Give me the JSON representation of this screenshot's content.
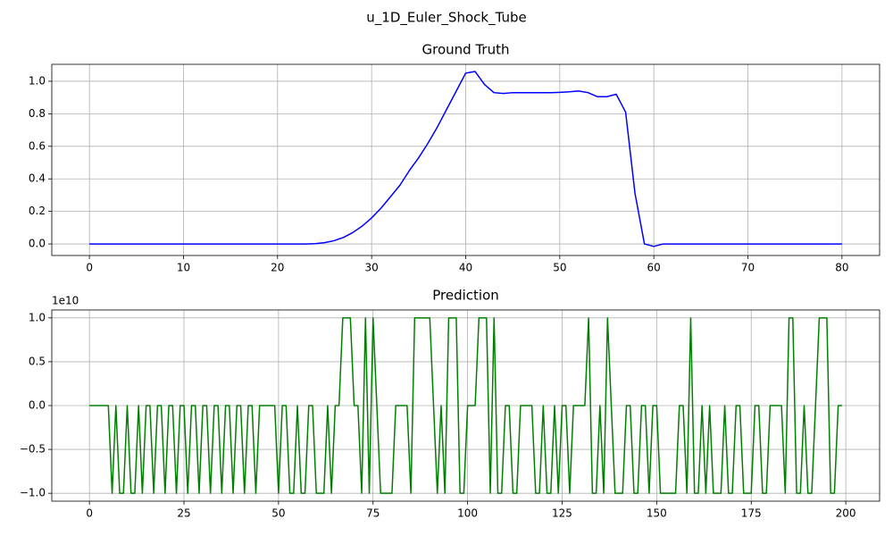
{
  "title": "u_1D_Euler_Shock_Tube",
  "chart_data": [
    {
      "type": "line",
      "title": "Ground Truth",
      "color": "#0000ff",
      "grid": true,
      "x": [
        0,
        1,
        2,
        3,
        4,
        5,
        6,
        7,
        8,
        9,
        10,
        11,
        12,
        13,
        14,
        15,
        16,
        17,
        18,
        19,
        20,
        21,
        22,
        23,
        24,
        25,
        26,
        27,
        28,
        29,
        30,
        31,
        32,
        33,
        34,
        35,
        36,
        37,
        38,
        39,
        40,
        41,
        42,
        43,
        44,
        45,
        46,
        47,
        48,
        49,
        50,
        51,
        52,
        53,
        54,
        55,
        56,
        57,
        58,
        59,
        60,
        61,
        62,
        63,
        64,
        65,
        66,
        67,
        68,
        69,
        70,
        71,
        72,
        73,
        74,
        75,
        76,
        77,
        78,
        79,
        80
      ],
      "values": [
        0,
        0,
        0,
        0,
        0,
        0,
        0,
        0,
        0,
        0,
        0,
        0,
        0,
        0,
        0,
        0,
        0,
        0,
        0,
        0,
        0,
        0,
        0,
        0,
        0.002,
        0.008,
        0.02,
        0.04,
        0.07,
        0.11,
        0.16,
        0.22,
        0.29,
        0.36,
        0.45,
        0.53,
        0.62,
        0.72,
        0.83,
        0.94,
        1.05,
        1.06,
        0.98,
        0.93,
        0.925,
        0.93,
        0.93,
        0.93,
        0.93,
        0.93,
        0.932,
        0.935,
        0.94,
        0.93,
        0.905,
        0.905,
        0.92,
        0.81,
        0.31,
        0.0,
        -0.015,
        0.0,
        0,
        0,
        0,
        0,
        0,
        0,
        0,
        0,
        0,
        0,
        0,
        0,
        0,
        0,
        0,
        0,
        0,
        0,
        0
      ],
      "xlim": [
        -4,
        84
      ],
      "xticks": [
        0,
        10,
        20,
        30,
        40,
        50,
        60,
        70,
        80
      ],
      "ylim": [
        -0.071,
        1.104
      ],
      "yticks": [
        {
          "value": 0,
          "label": "0.0"
        },
        {
          "value": 0.2,
          "label": "0.2"
        },
        {
          "value": 0.4,
          "label": "0.4"
        },
        {
          "value": 0.6,
          "label": "0.6"
        },
        {
          "value": 0.8,
          "label": "0.8"
        },
        {
          "value": 1.0,
          "label": "1.0"
        }
      ]
    },
    {
      "type": "line",
      "title": "Prediction",
      "color": "#008000",
      "grid": true,
      "offset_label": "1e10",
      "x": [
        0,
        1,
        2,
        3,
        4,
        5,
        6,
        7,
        8,
        9,
        10,
        11,
        12,
        13,
        14,
        15,
        16,
        17,
        18,
        19,
        20,
        21,
        22,
        23,
        24,
        25,
        26,
        27,
        28,
        29,
        30,
        31,
        32,
        33,
        34,
        35,
        36,
        37,
        38,
        39,
        40,
        41,
        42,
        43,
        44,
        45,
        46,
        47,
        48,
        49,
        50,
        51,
        52,
        53,
        54,
        55,
        56,
        57,
        58,
        59,
        60,
        61,
        62,
        63,
        64,
        65,
        66,
        67,
        68,
        69,
        70,
        71,
        72,
        73,
        74,
        75,
        76,
        77,
        78,
        79,
        80,
        81,
        82,
        83,
        84,
        85,
        86,
        87,
        88,
        89,
        90,
        91,
        92,
        93,
        94,
        95,
        96,
        97,
        98,
        99,
        100,
        101,
        102,
        103,
        104,
        105,
        106,
        107,
        108,
        109,
        110,
        111,
        112,
        113,
        114,
        115,
        116,
        117,
        118,
        119,
        120,
        121,
        122,
        123,
        124,
        125,
        126,
        127,
        128,
        129,
        130,
        131,
        132,
        133,
        134,
        135,
        136,
        137,
        138,
        139,
        140,
        141,
        142,
        143,
        144,
        145,
        146,
        147,
        148,
        149,
        150,
        151,
        152,
        153,
        154,
        155,
        156,
        157,
        158,
        159,
        160,
        161,
        162,
        163,
        164,
        165,
        166,
        167,
        168,
        169,
        170,
        171,
        172,
        173,
        174,
        175,
        176,
        177,
        178,
        179,
        180,
        181,
        182,
        183,
        184,
        185,
        186,
        187,
        188,
        189,
        190,
        191,
        192,
        193,
        194,
        195,
        196,
        197,
        198,
        199
      ],
      "values": [
        0,
        0,
        0,
        0,
        0,
        0,
        -10000000000.0,
        0,
        -10000000000.0,
        -10000000000.0,
        0,
        -10000000000.0,
        -10000000000.0,
        0,
        -10000000000.0,
        0,
        0,
        -10000000000.0,
        0,
        0,
        -10000000000.0,
        0,
        0,
        -10000000000.0,
        0,
        0,
        -10000000000.0,
        0,
        0,
        -10000000000.0,
        0,
        0,
        -10000000000.0,
        0,
        0,
        -10000000000.0,
        0,
        0,
        -10000000000.0,
        0,
        0,
        -10000000000.0,
        0,
        0,
        -10000000000.0,
        0,
        0,
        0,
        0,
        0,
        -10000000000.0,
        0,
        0,
        -10000000000.0,
        -10000000000.0,
        0,
        -10000000000.0,
        -10000000000.0,
        0,
        0,
        -10000000000.0,
        -10000000000.0,
        -10000000000.0,
        0,
        -10000000000.0,
        0,
        0,
        10000000000.0,
        10000000000.0,
        10000000000.0,
        0,
        0,
        -10000000000.0,
        10000000000.0,
        -10000000000.0,
        10000000000.0,
        0,
        -10000000000.0,
        -10000000000.0,
        -10000000000.0,
        -10000000000.0,
        0,
        0,
        0,
        0,
        -10000000000.0,
        10000000000.0,
        10000000000.0,
        10000000000.0,
        10000000000.0,
        10000000000.0,
        0,
        -10000000000.0,
        0,
        -10000000000.0,
        10000000000.0,
        10000000000.0,
        10000000000.0,
        -10000000000.0,
        -10000000000.0,
        0,
        0,
        0,
        10000000000.0,
        10000000000.0,
        10000000000.0,
        -10000000000.0,
        10000000000.0,
        -10000000000.0,
        -10000000000.0,
        0,
        0,
        -10000000000.0,
        -10000000000.0,
        0,
        0,
        0,
        0,
        -10000000000.0,
        -10000000000.0,
        0,
        -10000000000.0,
        -10000000000.0,
        0,
        -10000000000.0,
        0,
        0,
        -10000000000.0,
        0,
        0,
        0,
        0,
        10000000000.0,
        -10000000000.0,
        -10000000000.0,
        0,
        -10000000000.0,
        10000000000.0,
        0,
        -10000000000.0,
        -10000000000.0,
        -10000000000.0,
        0,
        0,
        -10000000000.0,
        -10000000000.0,
        0,
        0,
        -10000000000.0,
        0,
        0,
        -10000000000.0,
        -10000000000.0,
        -10000000000.0,
        -10000000000.0,
        -10000000000.0,
        0,
        0,
        -10000000000.0,
        10000000000.0,
        -10000000000.0,
        -10000000000.0,
        0,
        -10000000000.0,
        0,
        -10000000000.0,
        -10000000000.0,
        -10000000000.0,
        0,
        -10000000000.0,
        -10000000000.0,
        0,
        0,
        -10000000000.0,
        -10000000000.0,
        -10000000000.0,
        0,
        0,
        -10000000000.0,
        -10000000000.0,
        0,
        0,
        0,
        0,
        -10000000000.0,
        10000000000.0,
        10000000000.0,
        -10000000000.0,
        -10000000000.0,
        0,
        -10000000000.0,
        -10000000000.0,
        0,
        10000000000.0,
        10000000000.0,
        10000000000.0,
        -10000000000.0,
        -10000000000.0,
        0,
        0
      ],
      "xlim": [
        -9.95,
        208.95
      ],
      "xticks": [
        0,
        25,
        50,
        75,
        100,
        125,
        150,
        175,
        200
      ],
      "ylim": [
        -10900000000.0,
        10900000000.0
      ],
      "yticks": [
        {
          "value": -10000000000.0,
          "label": "−1.0"
        },
        {
          "value": -5000000000.0,
          "label": "−0.5"
        },
        {
          "value": 0,
          "label": "0.0"
        },
        {
          "value": 5000000000.0,
          "label": "0.5"
        },
        {
          "value": 10000000000.0,
          "label": "1.0"
        }
      ]
    }
  ]
}
